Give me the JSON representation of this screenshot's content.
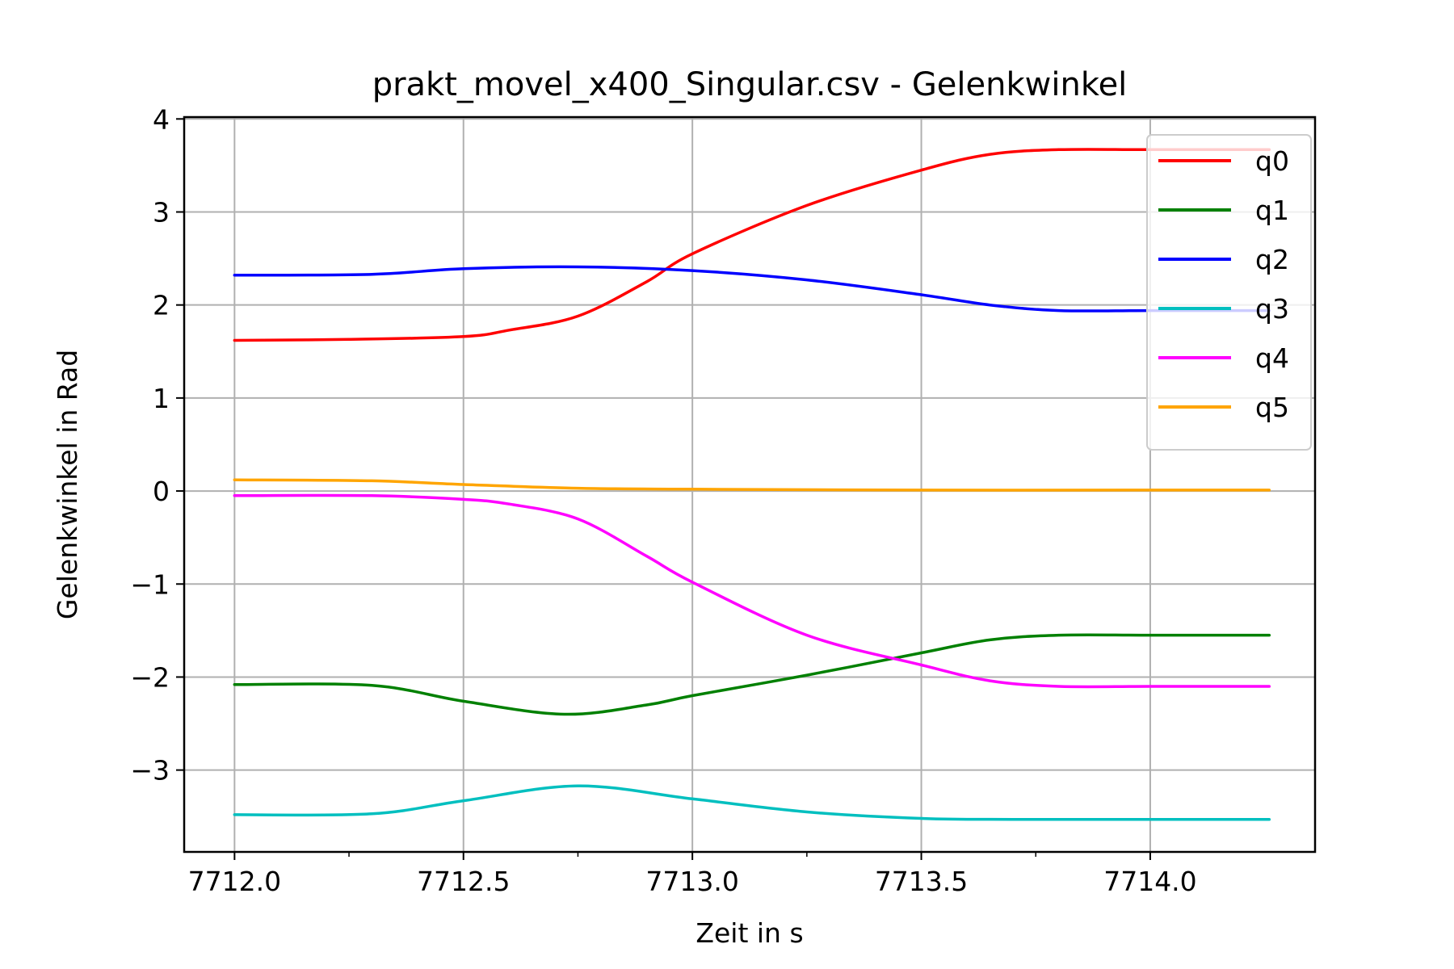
{
  "chart_data": {
    "type": "line",
    "title": "prakt_movel_x400_Singular.csv - Gelenkwinkel",
    "xlabel": "Zeit in s",
    "ylabel": "Gelenkwinkel in Rad",
    "xlim": [
      7711.89,
      7714.36
    ],
    "ylim": [
      -3.88,
      4.02
    ],
    "grid": true,
    "legend_position": "top-right",
    "xticks": [
      7712.0,
      7712.5,
      7713.0,
      7713.5,
      7714.0
    ],
    "xtick_labels": [
      "7712.0",
      "7712.5",
      "7713.0",
      "7713.5",
      "7714.0"
    ],
    "xticks_minor": [
      7712.25,
      7712.75,
      7713.25,
      7713.75
    ],
    "yticks": [
      4,
      3,
      2,
      1,
      0,
      -1,
      -2,
      -3
    ],
    "ytick_labels": [
      "4",
      "3",
      "2",
      "1",
      "0",
      "−1",
      "−2",
      "−3"
    ],
    "series": [
      {
        "name": "q0",
        "color": "#ff0000",
        "x": [
          7712.0,
          7712.25,
          7712.5,
          7712.6,
          7712.75,
          7712.9,
          7713.0,
          7713.25,
          7713.5,
          7713.65,
          7713.8,
          7714.0,
          7714.26
        ],
        "y": [
          1.62,
          1.63,
          1.66,
          1.73,
          1.88,
          2.25,
          2.55,
          3.07,
          3.45,
          3.62,
          3.67,
          3.67,
          3.67
        ]
      },
      {
        "name": "q1",
        "color": "#008000",
        "x": [
          7712.0,
          7712.3,
          7712.5,
          7712.72,
          7712.9,
          7713.0,
          7713.25,
          7713.5,
          7713.65,
          7713.8,
          7714.0,
          7714.26
        ],
        "y": [
          -2.08,
          -2.09,
          -2.26,
          -2.4,
          -2.3,
          -2.2,
          -1.98,
          -1.74,
          -1.6,
          -1.55,
          -1.55,
          -1.55
        ]
      },
      {
        "name": "q2",
        "color": "#0000ff",
        "x": [
          7712.0,
          7712.3,
          7712.5,
          7712.75,
          7713.0,
          7713.25,
          7713.5,
          7713.65,
          7713.8,
          7714.0,
          7714.26
        ],
        "y": [
          2.32,
          2.33,
          2.39,
          2.41,
          2.37,
          2.27,
          2.11,
          2.0,
          1.94,
          1.94,
          1.94
        ]
      },
      {
        "name": "q3",
        "color": "#00bfbf",
        "x": [
          7712.0,
          7712.3,
          7712.5,
          7712.75,
          7713.0,
          7713.25,
          7713.5,
          7713.7,
          7714.0,
          7714.26
        ],
        "y": [
          -3.48,
          -3.47,
          -3.33,
          -3.17,
          -3.31,
          -3.45,
          -3.52,
          -3.53,
          -3.53,
          -3.53
        ]
      },
      {
        "name": "q4",
        "color": "#ff00ff",
        "x": [
          7712.0,
          7712.3,
          7712.5,
          7712.6,
          7712.75,
          7712.9,
          7713.0,
          7713.25,
          7713.5,
          7713.65,
          7713.8,
          7714.0,
          7714.26
        ],
        "y": [
          -0.05,
          -0.05,
          -0.09,
          -0.14,
          -0.3,
          -0.7,
          -0.98,
          -1.55,
          -1.87,
          -2.04,
          -2.1,
          -2.1,
          -2.1
        ]
      },
      {
        "name": "q5",
        "color": "#ffa500",
        "x": [
          7712.0,
          7712.3,
          7712.5,
          7712.75,
          7713.0,
          7713.5,
          7714.0,
          7714.26
        ],
        "y": [
          0.12,
          0.11,
          0.07,
          0.03,
          0.02,
          0.01,
          0.01,
          0.01
        ]
      }
    ]
  }
}
